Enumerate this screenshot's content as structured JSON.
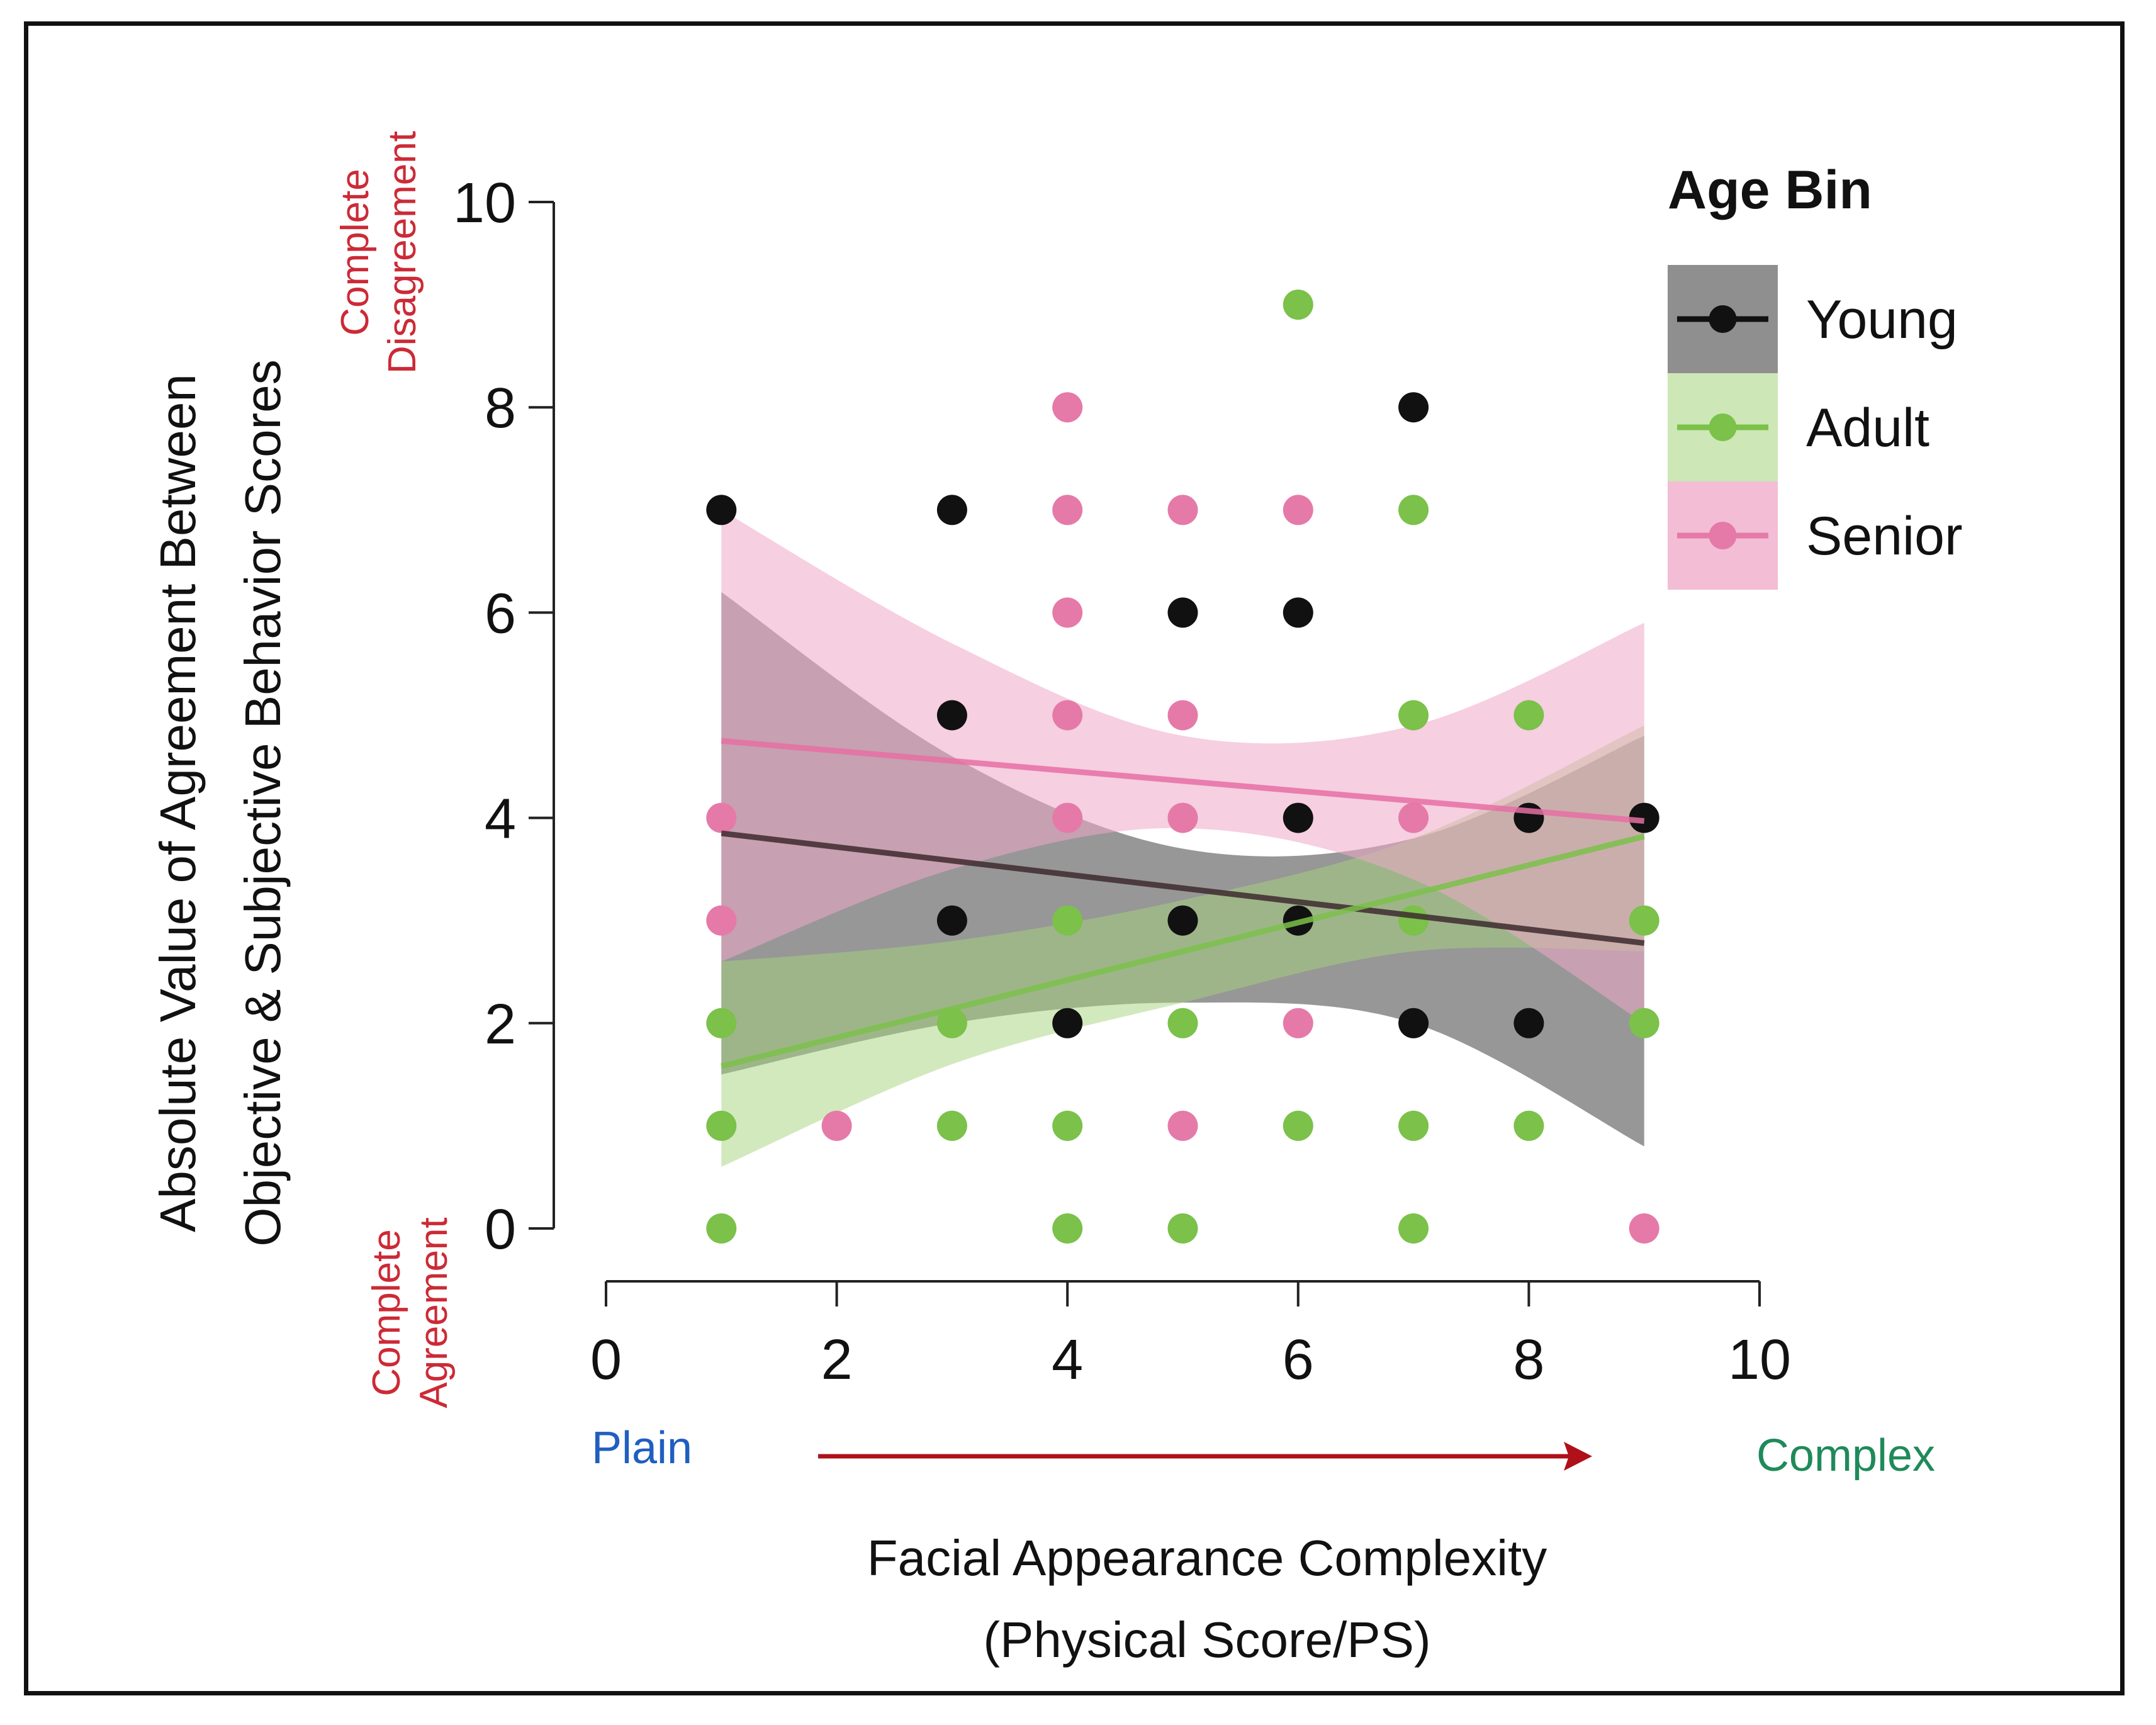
{
  "chart_data": {
    "type": "scatter",
    "title": "",
    "xlabel": [
      "Facial Appearance Complexity",
      "(Physical Score/PS)"
    ],
    "ylabel": [
      "Absolute Value of Agreement Between",
      "Objective & Subjective Behavior Scores"
    ],
    "xlim": [
      0,
      10
    ],
    "ylim": [
      0,
      10
    ],
    "x_ticks": [
      0,
      2,
      4,
      6,
      8,
      10
    ],
    "y_ticks": [
      0,
      2,
      4,
      6,
      8,
      10
    ],
    "grid": false,
    "annotations": {
      "y_top": [
        "Complete",
        "Disagreement"
      ],
      "y_bottom": [
        "Complete",
        "Agreement"
      ],
      "x_left": "Plain",
      "x_right": "Complex"
    },
    "legend": {
      "title": "Age Bin",
      "position": "top-right"
    },
    "series": [
      {
        "name": "Young",
        "color": "#111111",
        "band_color": "#6b6b6b",
        "points": [
          [
            1,
            7
          ],
          [
            3,
            7
          ],
          [
            3,
            5
          ],
          [
            3,
            3
          ],
          [
            4,
            2
          ],
          [
            5,
            6
          ],
          [
            5,
            3
          ],
          [
            6,
            6
          ],
          [
            6,
            4
          ],
          [
            6,
            3
          ],
          [
            7,
            8
          ],
          [
            7,
            2
          ],
          [
            8,
            4
          ],
          [
            8,
            2
          ],
          [
            9,
            4
          ]
        ],
        "fit": [
          [
            1,
            3.85
          ],
          [
            9,
            2.78
          ]
        ],
        "band": {
          "x": [
            1,
            3,
            5,
            7,
            9
          ],
          "upper": [
            6.2,
            4.6,
            3.7,
            3.8,
            4.8
          ],
          "lower": [
            1.5,
            2.0,
            2.2,
            2.0,
            0.8
          ]
        }
      },
      {
        "name": "Adult",
        "color": "#7bc14a",
        "band_color": "#a6d47e",
        "points": [
          [
            1,
            2
          ],
          [
            1,
            1
          ],
          [
            1,
            0
          ],
          [
            3,
            3
          ],
          [
            3,
            2
          ],
          [
            3,
            1
          ],
          [
            4,
            3
          ],
          [
            4,
            1
          ],
          [
            4,
            0
          ],
          [
            5,
            2
          ],
          [
            5,
            0
          ],
          [
            6,
            9
          ],
          [
            6,
            1
          ],
          [
            7,
            7
          ],
          [
            7,
            5
          ],
          [
            7,
            3
          ],
          [
            7,
            1
          ],
          [
            7,
            0
          ],
          [
            8,
            5
          ],
          [
            8,
            1
          ],
          [
            9,
            3
          ],
          [
            9,
            2
          ]
        ],
        "fit": [
          [
            1,
            1.58
          ],
          [
            9,
            3.82
          ]
        ],
        "band": {
          "x": [
            1,
            3,
            5,
            7,
            9
          ],
          "upper": [
            2.6,
            2.8,
            3.2,
            3.8,
            4.9
          ],
          "lower": [
            0.6,
            1.6,
            2.2,
            2.7,
            2.7
          ]
        }
      },
      {
        "name": "Senior",
        "color": "#e57aa9",
        "band_color": "#efa7c6",
        "points": [
          [
            1,
            4
          ],
          [
            1,
            3
          ],
          [
            2,
            1
          ],
          [
            4,
            8
          ],
          [
            4,
            7
          ],
          [
            4,
            6
          ],
          [
            4,
            5
          ],
          [
            4,
            4
          ],
          [
            5,
            7
          ],
          [
            5,
            5
          ],
          [
            5,
            4
          ],
          [
            5,
            1
          ],
          [
            6,
            7
          ],
          [
            6,
            2
          ],
          [
            7,
            4
          ],
          [
            8,
            2
          ],
          [
            9,
            0
          ]
        ],
        "fit": [
          [
            1,
            4.75
          ],
          [
            9,
            3.97
          ]
        ],
        "band": {
          "x": [
            1,
            3,
            5,
            7,
            9
          ],
          "upper": [
            7.0,
            5.7,
            4.8,
            4.9,
            5.9
          ],
          "lower": [
            2.6,
            3.5,
            3.9,
            3.4,
            2.0
          ]
        }
      }
    ]
  }
}
